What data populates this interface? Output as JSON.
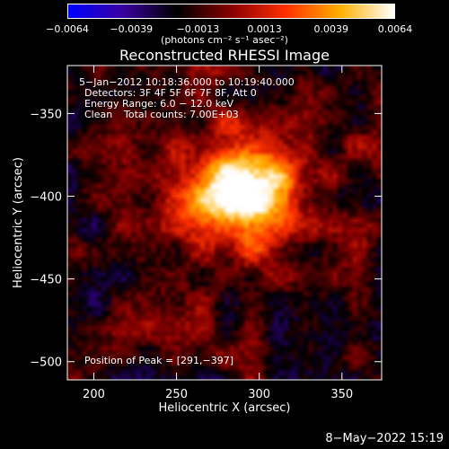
{
  "colorbar": {
    "min": -0.0064,
    "max": 0.0064,
    "tick_labels": [
      "−0.0064",
      "−0.0039",
      "−0.0013",
      "0.0013",
      "0.0039",
      "0.0064"
    ],
    "tick_values": [
      -0.0064,
      -0.0039,
      -0.0013,
      0.0013,
      0.0039,
      0.0064
    ],
    "units": "(photons cm⁻² s⁻¹ asec⁻²)",
    "colors": [
      "#0000ff",
      "#3a00a0",
      "#000000",
      "#8a0000",
      "#ff3000",
      "#ffb000",
      "#ffffff"
    ]
  },
  "annotations": {
    "time_range": "5−Jan−2012 10:18:36.000 to 10:19:40.000",
    "detectors": "Detectors: 3F 4F 5F 6F 7F 8F, Att 0",
    "energy": "Energy Range: 6.0 − 12.0 keV",
    "algorithm": "Clean",
    "counts": "Total counts: 7.00E+03",
    "peak": "Position of Peak = [291,−397]"
  },
  "footer": {
    "datestamp": "8−May−2022 15:19"
  },
  "chart_data": {
    "type": "heatmap",
    "title": "Reconstructed RHESSI Image",
    "xlabel": "Heliocentric X (arcsec)",
    "ylabel": "Heliocentric Y (arcsec)",
    "xlim": [
      184,
      374
    ],
    "ylim": [
      -511,
      -321
    ],
    "x_ticks": [
      200,
      250,
      300,
      350
    ],
    "y_ticks": [
      -350,
      -400,
      -450,
      -500
    ],
    "x_tick_labels": [
      "200",
      "250",
      "300",
      "350"
    ],
    "y_tick_labels": [
      "−350",
      "−400",
      "−450",
      "−500"
    ],
    "peak": {
      "x": 291,
      "y": -397
    },
    "value_range": [
      -0.0064,
      0.0064
    ]
  }
}
